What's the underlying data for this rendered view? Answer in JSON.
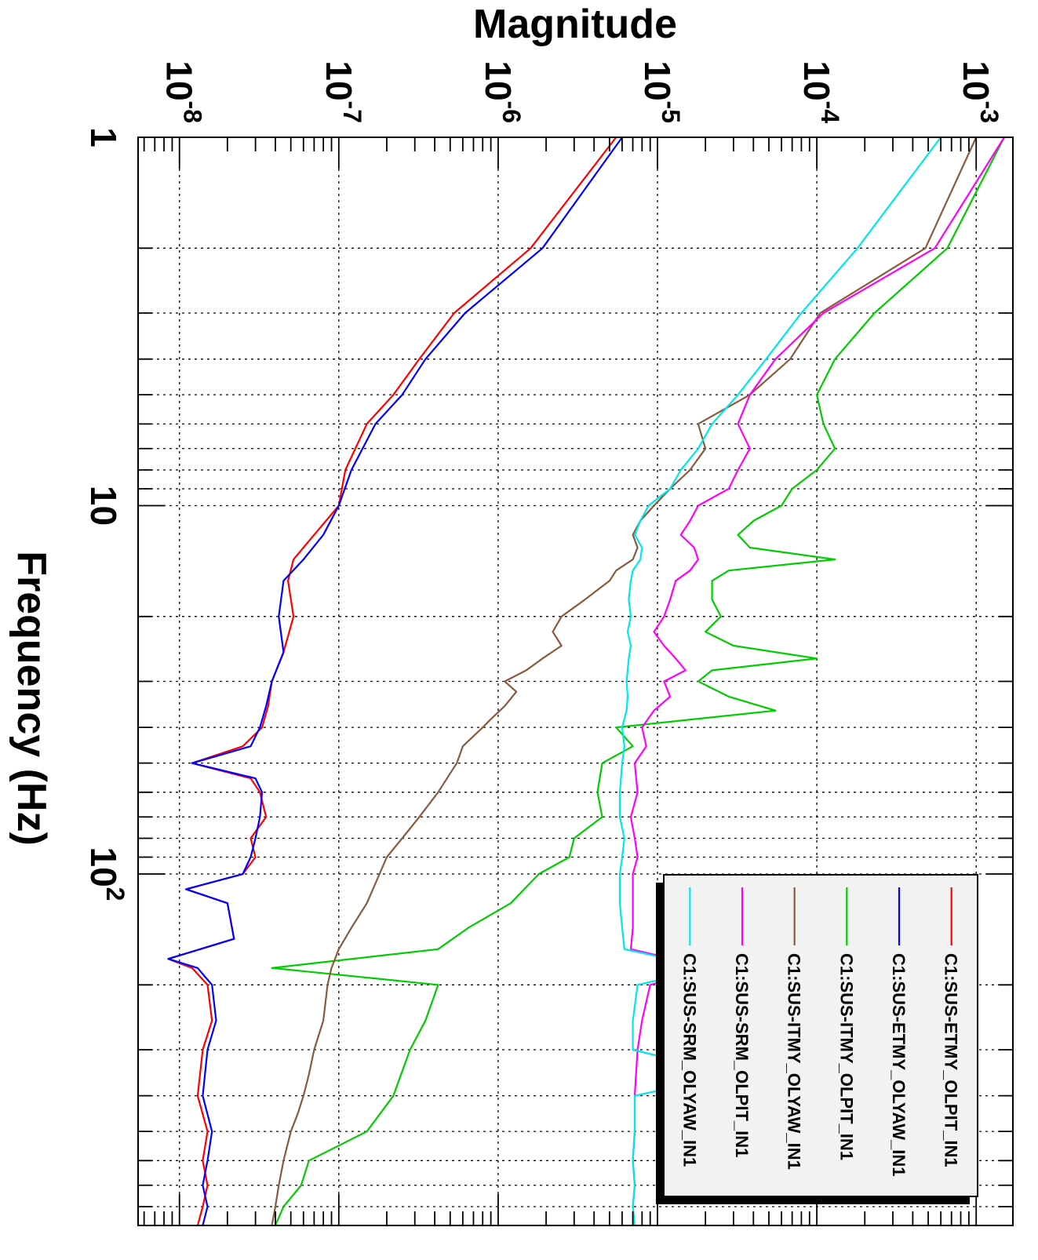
{
  "chart_data": {
    "type": "line",
    "orientation": "rotated-90-clockwise",
    "xlabel": "Frequency (Hz)",
    "ylabel": "Magnitude",
    "xscale": "log",
    "yscale": "log",
    "xlim": [
      1,
      900
    ],
    "ylim": [
      5.5e-09,
      0.0017
    ],
    "grid": true,
    "legend_position": "bottom-right (rotated view)",
    "x_ticks": [
      {
        "value": 1,
        "base": "1",
        "exp": ""
      },
      {
        "value": 10,
        "base": "10",
        "exp": ""
      },
      {
        "value": 100,
        "base": "10",
        "exp": "2"
      }
    ],
    "y_ticks": [
      {
        "value": 1e-08,
        "base": "10",
        "exp": "-8"
      },
      {
        "value": 1e-07,
        "base": "10",
        "exp": "-7"
      },
      {
        "value": 1e-06,
        "base": "10",
        "exp": "-6"
      },
      {
        "value": 1e-05,
        "base": "10",
        "exp": "-5"
      },
      {
        "value": 0.0001,
        "base": "10",
        "exp": "-4"
      },
      {
        "value": 0.001,
        "base": "10",
        "exp": "-3"
      }
    ],
    "series": [
      {
        "name": "C1:SUS-ETMY_OLPIT_IN1",
        "color": "#ff0000",
        "points": [
          [
            1,
            5.5e-06
          ],
          [
            2,
            1.6e-06
          ],
          [
            3,
            5.3e-07
          ],
          [
            4,
            3.2e-07
          ],
          [
            5,
            2.2e-07
          ],
          [
            6,
            1.5e-07
          ],
          [
            8,
            1.1e-07
          ],
          [
            10,
            1e-07
          ],
          [
            12,
            7e-08
          ],
          [
            14,
            5.2e-08
          ],
          [
            16,
            4.8e-08
          ],
          [
            20,
            5.2e-08
          ],
          [
            25,
            4.5e-08
          ],
          [
            30,
            3.8e-08
          ],
          [
            35,
            3.6e-08
          ],
          [
            40,
            3.3e-08
          ],
          [
            45,
            2.5e-08
          ],
          [
            50,
            1.2e-08
          ],
          [
            55,
            2.8e-08
          ],
          [
            60,
            3.2e-08
          ],
          [
            70,
            3.5e-08
          ],
          [
            80,
            2.8e-08
          ],
          [
            90,
            3e-08
          ],
          [
            100,
            2.5e-08
          ],
          [
            110,
            1.1e-08
          ],
          [
            120,
            2e-08
          ],
          [
            150,
            2.2e-08
          ],
          [
            170,
            8.5e-09
          ],
          [
            180,
            1.2e-08
          ],
          [
            200,
            1.5e-08
          ],
          [
            250,
            1.6e-08
          ],
          [
            300,
            1.4e-08
          ],
          [
            400,
            1.3e-08
          ],
          [
            500,
            1.5e-08
          ],
          [
            600,
            1.4e-08
          ],
          [
            700,
            1.5e-08
          ],
          [
            800,
            1.4e-08
          ],
          [
            900,
            1.3e-08
          ]
        ]
      },
      {
        "name": "C1:SUS-ETMY_OLYAW_IN1",
        "color": "#0000ff",
        "points": [
          [
            1,
            6e-06
          ],
          [
            2,
            1.9e-06
          ],
          [
            3,
            6.2e-07
          ],
          [
            4,
            3.5e-07
          ],
          [
            5,
            2.5e-07
          ],
          [
            6,
            1.7e-07
          ],
          [
            8,
            1.2e-07
          ],
          [
            10,
            1e-07
          ],
          [
            12,
            8e-08
          ],
          [
            14,
            6e-08
          ],
          [
            16,
            4.5e-08
          ],
          [
            20,
            4.2e-08
          ],
          [
            25,
            4.5e-08
          ],
          [
            30,
            3.8e-08
          ],
          [
            35,
            3.5e-08
          ],
          [
            40,
            3.2e-08
          ],
          [
            45,
            2.8e-08
          ],
          [
            50,
            1.2e-08
          ],
          [
            55,
            3e-08
          ],
          [
            60,
            3.3e-08
          ],
          [
            70,
            3.2e-08
          ],
          [
            80,
            3e-08
          ],
          [
            90,
            2.8e-08
          ],
          [
            100,
            2.5e-08
          ],
          [
            110,
            1.1e-08
          ],
          [
            120,
            2e-08
          ],
          [
            150,
            2.2e-08
          ],
          [
            170,
            8.5e-09
          ],
          [
            180,
            1.3e-08
          ],
          [
            200,
            1.6e-08
          ],
          [
            250,
            1.7e-08
          ],
          [
            300,
            1.5e-08
          ],
          [
            400,
            1.4e-08
          ],
          [
            500,
            1.6e-08
          ],
          [
            600,
            1.5e-08
          ],
          [
            700,
            1.4e-08
          ],
          [
            800,
            1.5e-08
          ],
          [
            900,
            1.4e-08
          ]
        ]
      },
      {
        "name": "C1:SUS-ITMY_OLPIT_IN1",
        "color": "#00cc00",
        "points": [
          [
            1,
            0.0015
          ],
          [
            2,
            0.00066
          ],
          [
            3,
            0.00023
          ],
          [
            4,
            0.00013
          ],
          [
            5,
            0.0001
          ],
          [
            6,
            0.00011
          ],
          [
            7,
            0.00013
          ],
          [
            8,
            0.0001
          ],
          [
            9,
            7e-05
          ],
          [
            10,
            6e-05
          ],
          [
            11,
            4e-05
          ],
          [
            12,
            3.2e-05
          ],
          [
            13,
            3.8e-05
          ],
          [
            14,
            0.00013
          ],
          [
            15,
            2.8e-05
          ],
          [
            16,
            2.2e-05
          ],
          [
            18,
            2.2e-05
          ],
          [
            20,
            2.5e-05
          ],
          [
            22,
            2e-05
          ],
          [
            24,
            3e-05
          ],
          [
            26,
            0.0001
          ],
          [
            28,
            2.2e-05
          ],
          [
            30,
            1.8e-05
          ],
          [
            33,
            2.8e-05
          ],
          [
            36,
            5.5e-05
          ],
          [
            40,
            5.5e-06
          ],
          [
            45,
            7e-06
          ],
          [
            50,
            4.5e-06
          ],
          [
            60,
            4.2e-06
          ],
          [
            70,
            4.5e-06
          ],
          [
            80,
            3e-06
          ],
          [
            90,
            2.8e-06
          ],
          [
            100,
            1.8e-06
          ],
          [
            120,
            1.2e-06
          ],
          [
            140,
            6.5e-07
          ],
          [
            160,
            4.2e-07
          ],
          [
            180,
            3.8e-08
          ],
          [
            200,
            4.2e-07
          ],
          [
            250,
            3.5e-07
          ],
          [
            300,
            2.8e-07
          ],
          [
            400,
            2.2e-07
          ],
          [
            500,
            1.5e-07
          ],
          [
            600,
            6.5e-08
          ],
          [
            700,
            5.8e-08
          ],
          [
            800,
            4.5e-08
          ],
          [
            900,
            4e-08
          ]
        ]
      },
      {
        "name": "C1:SUS-ITMY_OLYAW_IN1",
        "color": "#8b5a3c",
        "points": [
          [
            1,
            0.001
          ],
          [
            2,
            0.00048
          ],
          [
            3,
            0.000105
          ],
          [
            4,
            6.8e-05
          ],
          [
            5,
            3.8e-05
          ],
          [
            6,
            1.8e-05
          ],
          [
            7,
            2e-05
          ],
          [
            8,
            1.6e-05
          ],
          [
            9,
            1.2e-05
          ],
          [
            10,
            9.5e-06
          ],
          [
            11,
            7.8e-06
          ],
          [
            12,
            7e-06
          ],
          [
            13,
            7.5e-06
          ],
          [
            14,
            7e-06
          ],
          [
            15,
            5.5e-06
          ],
          [
            16,
            5e-06
          ],
          [
            18,
            3.5e-06
          ],
          [
            20,
            2.5e-06
          ],
          [
            22,
            2.2e-06
          ],
          [
            24,
            2.5e-06
          ],
          [
            26,
            1.9e-06
          ],
          [
            28,
            1.5e-06
          ],
          [
            30,
            1.1e-06
          ],
          [
            32,
            1.3e-06
          ],
          [
            35,
            1.1e-06
          ],
          [
            38,
            9e-07
          ],
          [
            40,
            8e-07
          ],
          [
            45,
            6e-07
          ],
          [
            50,
            5.5e-07
          ],
          [
            60,
            4.2e-07
          ],
          [
            70,
            3.2e-07
          ],
          [
            80,
            2.5e-07
          ],
          [
            90,
            2e-07
          ],
          [
            100,
            1.8e-07
          ],
          [
            120,
            1.5e-07
          ],
          [
            140,
            1.2e-07
          ],
          [
            160,
            1e-07
          ],
          [
            180,
            9e-08
          ],
          [
            200,
            8.5e-08
          ],
          [
            250,
            8e-08
          ],
          [
            300,
            7e-08
          ],
          [
            350,
            6.5e-08
          ],
          [
            400,
            6e-08
          ],
          [
            450,
            5.5e-08
          ],
          [
            500,
            5e-08
          ],
          [
            600,
            4.5e-08
          ],
          [
            700,
            4.2e-08
          ],
          [
            800,
            4e-08
          ],
          [
            900,
            3.8e-08
          ]
        ]
      },
      {
        "name": "C1:SUS-SRM_OLPIT_IN1",
        "color": "#ff00ff",
        "points": [
          [
            1,
            0.0015
          ],
          [
            2,
            0.00055
          ],
          [
            3,
            0.00011
          ],
          [
            4,
            5.5e-05
          ],
          [
            5,
            3.8e-05
          ],
          [
            6,
            3.2e-05
          ],
          [
            7,
            3.8e-05
          ],
          [
            8,
            3.2e-05
          ],
          [
            9,
            2.8e-05
          ],
          [
            10,
            1.8e-05
          ],
          [
            11,
            1.6e-05
          ],
          [
            12,
            1.4e-05
          ],
          [
            13,
            1.7e-05
          ],
          [
            14,
            1.8e-05
          ],
          [
            15,
            1.6e-05
          ],
          [
            16,
            1.3e-05
          ],
          [
            18,
            1.2e-05
          ],
          [
            20,
            1.1e-05
          ],
          [
            22,
            9.5e-06
          ],
          [
            24,
            1.1e-05
          ],
          [
            26,
            1.3e-05
          ],
          [
            28,
            1.5e-05
          ],
          [
            30,
            1.1e-05
          ],
          [
            33,
            1.2e-05
          ],
          [
            36,
            9.5e-06
          ],
          [
            40,
            8e-06
          ],
          [
            45,
            8.5e-06
          ],
          [
            50,
            7.2e-06
          ],
          [
            60,
            7.5e-06
          ],
          [
            70,
            6.8e-06
          ],
          [
            80,
            7.2e-06
          ],
          [
            90,
            7.5e-06
          ],
          [
            100,
            7e-06
          ],
          [
            120,
            7e-06
          ],
          [
            140,
            7e-06
          ],
          [
            160,
            6.8e-06
          ],
          [
            180,
            2.2e-05
          ],
          [
            200,
            9e-06
          ],
          [
            250,
            8e-06
          ],
          [
            300,
            7.5e-06
          ],
          [
            400,
            7.2e-06
          ],
          [
            500,
            7.2e-06
          ],
          [
            600,
            7e-06
          ],
          [
            700,
            7.2e-06
          ],
          [
            800,
            7e-06
          ],
          [
            900,
            7.2e-06
          ]
        ]
      },
      {
        "name": "C1:SUS-SRM_OLYAW_IN1",
        "color": "#00e5ee",
        "points": [
          [
            1,
            0.0006
          ],
          [
            2,
            0.00018
          ],
          [
            3,
            8e-05
          ],
          [
            4,
            4.8e-05
          ],
          [
            5,
            3.2e-05
          ],
          [
            6,
            2.2e-05
          ],
          [
            7,
            1.8e-05
          ],
          [
            8,
            1.4e-05
          ],
          [
            9,
            1.2e-05
          ],
          [
            10,
            8.8e-06
          ],
          [
            11,
            7.8e-06
          ],
          [
            12,
            7.2e-06
          ],
          [
            13,
            8e-06
          ],
          [
            14,
            7.8e-06
          ],
          [
            15,
            7e-06
          ],
          [
            16,
            6.8e-06
          ],
          [
            18,
            6.6e-06
          ],
          [
            20,
            6.8e-06
          ],
          [
            22,
            6.5e-06
          ],
          [
            24,
            6.8e-06
          ],
          [
            26,
            6.6e-06
          ],
          [
            28,
            6.5e-06
          ],
          [
            30,
            6.4e-06
          ],
          [
            33,
            6.5e-06
          ],
          [
            36,
            6.4e-06
          ],
          [
            40,
            6e-06
          ],
          [
            45,
            6.2e-06
          ],
          [
            50,
            6e-06
          ],
          [
            60,
            5.8e-06
          ],
          [
            70,
            5.8e-06
          ],
          [
            80,
            6.2e-06
          ],
          [
            90,
            6e-06
          ],
          [
            100,
            5.8e-06
          ],
          [
            120,
            5.8e-06
          ],
          [
            140,
            6e-06
          ],
          [
            160,
            6.2e-06
          ],
          [
            180,
            2.2e-05
          ],
          [
            200,
            7.5e-06
          ],
          [
            250,
            7e-06
          ],
          [
            300,
            7e-06
          ],
          [
            350,
            3e-05
          ],
          [
            400,
            7.2e-06
          ],
          [
            500,
            7.2e-06
          ],
          [
            600,
            7e-06
          ],
          [
            700,
            7.2e-06
          ],
          [
            800,
            7e-06
          ],
          [
            900,
            7.2e-06
          ]
        ]
      }
    ]
  }
}
